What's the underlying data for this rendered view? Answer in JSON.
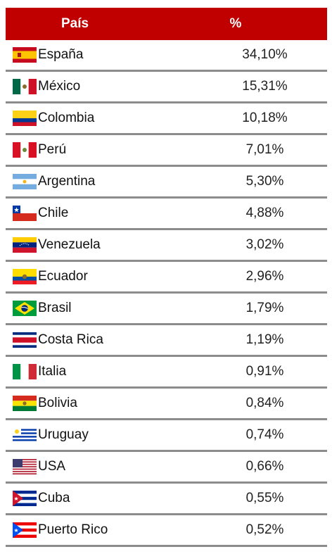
{
  "table": {
    "header": {
      "country": "País",
      "percent": "%"
    },
    "rows": [
      {
        "flag": "spain-flag-icon",
        "country": "España",
        "percent": "34,10%"
      },
      {
        "flag": "mexico-flag-icon",
        "country": "México",
        "percent": "15,31%"
      },
      {
        "flag": "colombia-flag-icon",
        "country": "Colombia",
        "percent": "10,18%"
      },
      {
        "flag": "peru-flag-icon",
        "country": "Perú",
        "percent": "7,01%"
      },
      {
        "flag": "argentina-flag-icon",
        "country": "Argentina",
        "percent": "5,30%"
      },
      {
        "flag": "chile-flag-icon",
        "country": "Chile",
        "percent": "4,88%"
      },
      {
        "flag": "venezuela-flag-icon",
        "country": "Venezuela",
        "percent": "3,02%"
      },
      {
        "flag": "ecuador-flag-icon",
        "country": "Ecuador",
        "percent": "2,96%"
      },
      {
        "flag": "brazil-flag-icon",
        "country": "Brasil",
        "percent": "1,79%"
      },
      {
        "flag": "costa-rica-flag-icon",
        "country": "Costa Rica",
        "percent": "1,19%"
      },
      {
        "flag": "italy-flag-icon",
        "country": "Italia",
        "percent": "0,91%"
      },
      {
        "flag": "bolivia-flag-icon",
        "country": "Bolivia",
        "percent": "0,84%"
      },
      {
        "flag": "uruguay-flag-icon",
        "country": "Uruguay",
        "percent": "0,74%"
      },
      {
        "flag": "usa-flag-icon",
        "country": "USA",
        "percent": "0,66%"
      },
      {
        "flag": "cuba-flag-icon",
        "country": "Cuba",
        "percent": "0,55%"
      },
      {
        "flag": "puerto-rico-flag-icon",
        "country": "Puerto Rico",
        "percent": "0,52%"
      }
    ]
  },
  "colors": {
    "header_bg": "#c00000",
    "header_text": "#ffffff",
    "row_border": "#8c8c8c"
  }
}
